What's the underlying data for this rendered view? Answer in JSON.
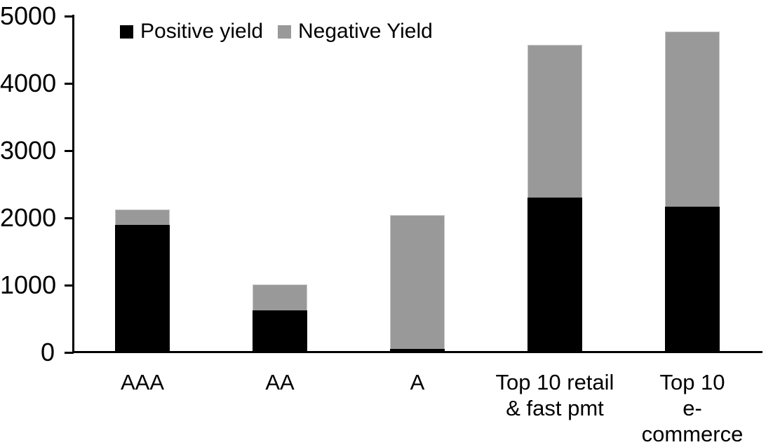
{
  "chart_data": {
    "type": "bar",
    "stacked": true,
    "title": "",
    "xlabel": "",
    "ylabel": "",
    "categories": [
      "AAA",
      "AA",
      "A",
      "Top 10 retail\n& fast pmt",
      "Top 10\ne-commerce"
    ],
    "series": [
      {
        "name": "Positive yield",
        "color": "#000000",
        "values": [
          1900,
          630,
          50,
          2300,
          2170
        ]
      },
      {
        "name": "Negative Yield",
        "color": "#999999",
        "values": [
          230,
          380,
          1990,
          2270,
          2600
        ]
      }
    ],
    "totals": [
      2130,
      1010,
      2040,
      4570,
      4770
    ],
    "ylim": [
      0,
      5000
    ],
    "yticks": [
      0,
      1000,
      2000,
      3000,
      4000,
      5000
    ],
    "grid": false,
    "legend_position": "top-left",
    "axis_color": "#000000",
    "background": "#ffffff"
  },
  "legend": {
    "items": [
      {
        "label": "Positive yield",
        "color": "#000000"
      },
      {
        "label": "Negative Yield",
        "color": "#999999"
      }
    ]
  }
}
